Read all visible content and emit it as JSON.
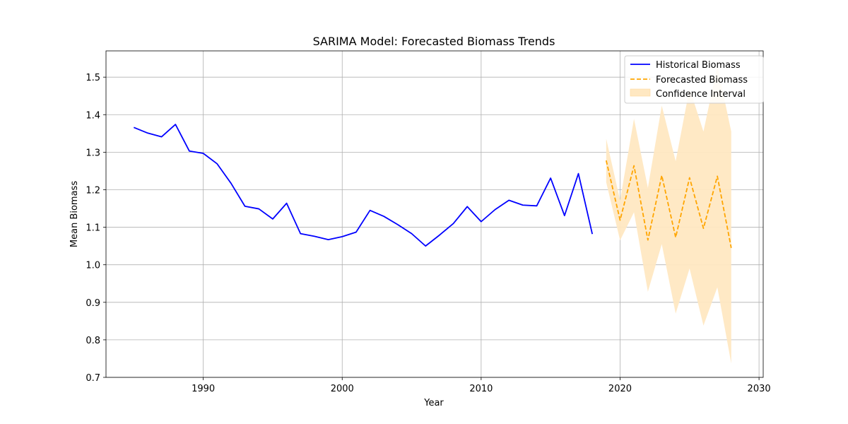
{
  "chart_data": {
    "type": "line",
    "title": "SARIMA Model: Forecasted Biomass Trends",
    "xlabel": "Year",
    "ylabel": "Mean Biomass",
    "xlim": [
      1983,
      2030.3
    ],
    "ylim": [
      0.7,
      1.57
    ],
    "x_ticks": [
      1990,
      2000,
      2010,
      2020,
      2030
    ],
    "y_ticks": [
      0.7,
      0.8,
      0.9,
      1.0,
      1.1,
      1.2,
      1.3,
      1.4,
      1.5
    ],
    "grid": true,
    "legend_position": "top-right",
    "colors": {
      "historical": "#0000ff",
      "forecast": "#ffa500",
      "band": "#ffe8c2"
    },
    "series": [
      {
        "name": "Historical Biomass",
        "style": "solid",
        "x": [
          1985,
          1986,
          1987,
          1988,
          1989,
          1990,
          1991,
          1992,
          1993,
          1994,
          1995,
          1996,
          1997,
          1998,
          1999,
          2000,
          2001,
          2002,
          2003,
          2004,
          2005,
          2006,
          2007,
          2008,
          2009,
          2010,
          2011,
          2012,
          2013,
          2014,
          2015,
          2016,
          2017,
          2018
        ],
        "y": [
          1.366,
          1.351,
          1.341,
          1.374,
          1.303,
          1.297,
          1.269,
          1.217,
          1.156,
          1.149,
          1.122,
          1.164,
          1.083,
          1.076,
          1.067,
          1.075,
          1.087,
          1.145,
          1.129,
          1.107,
          1.083,
          1.05,
          1.079,
          1.11,
          1.155,
          1.115,
          1.147,
          1.172,
          1.159,
          1.157,
          1.231,
          1.131,
          1.243,
          1.082
        ]
      },
      {
        "name": "Forecasted Biomass",
        "style": "dashed",
        "x": [
          2019,
          2020,
          2021,
          2022,
          2023,
          2024,
          2025,
          2026,
          2027,
          2028
        ],
        "y": [
          1.278,
          1.119,
          1.264,
          1.066,
          1.238,
          1.073,
          1.232,
          1.097,
          1.236,
          1.045
        ]
      }
    ],
    "confidence_interval": {
      "name": "Confidence Interval",
      "x": [
        2019,
        2020,
        2021,
        2022,
        2023,
        2024,
        2025,
        2026,
        2027,
        2028
      ],
      "lower": [
        1.22,
        1.065,
        1.14,
        0.928,
        1.055,
        0.87,
        0.99,
        0.838,
        0.94,
        0.737
      ],
      "upper": [
        1.336,
        1.172,
        1.389,
        1.205,
        1.424,
        1.276,
        1.47,
        1.355,
        1.53,
        1.355
      ]
    }
  }
}
